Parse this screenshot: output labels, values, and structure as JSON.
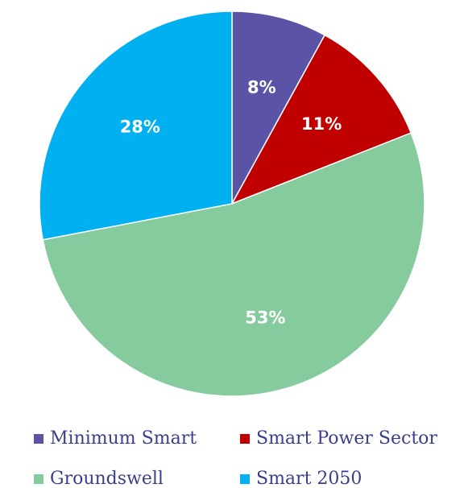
{
  "chart_data": {
    "type": "pie",
    "categories": [
      "Minimum Smart",
      "Smart Power Sector",
      "Groundswell",
      "Smart 2050"
    ],
    "values": [
      8,
      11,
      53,
      28
    ],
    "value_labels": [
      "8%",
      "11%",
      "53%",
      "28%"
    ],
    "colors": [
      "#5b54a6",
      "#c00000",
      "#86cb9d",
      "#00b0f0"
    ],
    "legend": "bottom"
  }
}
